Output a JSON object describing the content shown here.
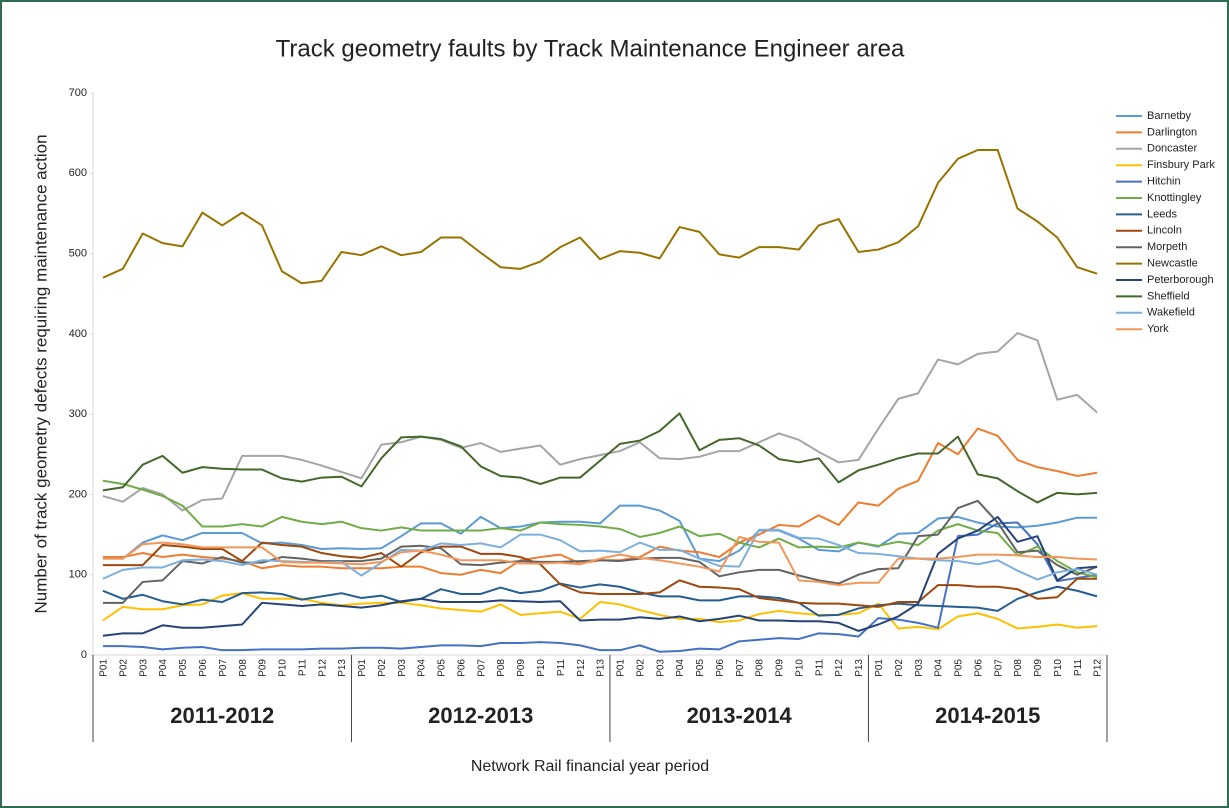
{
  "chart_data": {
    "type": "line",
    "title": "Track geometry faults by Track Maintenance Engineer area",
    "y_label": "Number of track geometry defects requiring maintenance action",
    "x_label": "Network Rail financial year period",
    "groups": [
      {
        "name": "2011-2012",
        "categories": [
          "P01",
          "P02",
          "P03",
          "P04",
          "P05",
          "P06",
          "P07",
          "P08",
          "P09",
          "P10",
          "P11",
          "P12",
          "P13"
        ]
      },
      {
        "name": "2012-2013",
        "categories": [
          "P01",
          "P02",
          "P03",
          "P04",
          "P05",
          "P06",
          "P07",
          "P08",
          "P09",
          "P10",
          "P11",
          "P12",
          "P13"
        ]
      },
      {
        "name": "2013-2014",
        "categories": [
          "P01",
          "P02",
          "P03",
          "P04",
          "P05",
          "P06",
          "P07",
          "P08",
          "P09",
          "P10",
          "P11",
          "P12",
          "P13"
        ]
      },
      {
        "name": "2014-2015",
        "categories": [
          "P01",
          "P02",
          "P03",
          "P04",
          "P05",
          "P06",
          "P07",
          "P08",
          "P09",
          "P10",
          "P11",
          "P12"
        ]
      }
    ],
    "ylim": [
      0,
      700
    ],
    "yticks": [
      0,
      100,
      200,
      300,
      400,
      500,
      600,
      700
    ],
    "grid": false,
    "legend": "right",
    "series": [
      {
        "name": "Barnetby",
        "color": "#5b9bd5",
        "values": [
          120,
          120,
          140,
          149,
          143,
          152,
          152,
          152,
          139,
          140,
          137,
          132,
          133,
          132,
          133,
          148,
          164,
          164,
          151,
          172,
          158,
          160,
          165,
          166,
          166,
          164,
          186,
          186,
          180,
          167,
          120,
          117,
          130,
          155,
          155,
          145,
          131,
          129,
          140,
          135,
          151,
          152,
          170,
          172,
          165,
          160,
          159,
          161,
          165,
          171,
          171
        ]
      },
      {
        "name": "Darlington",
        "color": "#ed7d31",
        "values": [
          122,
          122,
          127,
          122,
          125,
          122,
          120,
          117,
          108,
          112,
          110,
          110,
          108,
          108,
          108,
          110,
          110,
          102,
          100,
          106,
          102,
          118,
          122,
          125,
          114,
          118,
          118,
          122,
          135,
          130,
          128,
          122,
          140,
          150,
          162,
          160,
          174,
          162,
          190,
          186,
          207,
          217,
          264,
          250,
          282,
          273,
          243,
          234,
          229,
          223,
          227
        ]
      },
      {
        "name": "Doncaster",
        "color": "#a5a5a5",
        "values": [
          198,
          191,
          208,
          200,
          180,
          193,
          195,
          248,
          248,
          248,
          243,
          236,
          228,
          220,
          262,
          265,
          272,
          268,
          258,
          264,
          253,
          257,
          261,
          237,
          244,
          249,
          254,
          265,
          245,
          244,
          247,
          254,
          254,
          265,
          276,
          268,
          253,
          240,
          243,
          282,
          319,
          326,
          368,
          362,
          375,
          378,
          401,
          392,
          318,
          324,
          302
        ]
      },
      {
        "name": "Finsbury Park",
        "color": "#ffc000",
        "values": [
          43,
          60,
          57,
          57,
          62,
          63,
          74,
          77,
          70,
          70,
          70,
          65,
          62,
          64,
          65,
          65,
          62,
          58,
          56,
          54,
          63,
          50,
          52,
          54,
          45,
          66,
          63,
          56,
          50,
          45,
          45,
          41,
          43,
          51,
          55,
          52,
          50,
          50,
          52,
          64,
          33,
          35,
          32,
          48,
          52,
          45,
          33,
          35,
          38,
          34,
          36
        ]
      },
      {
        "name": "Hitchin",
        "color": "#4472c4",
        "values": [
          11,
          11,
          10,
          7,
          9,
          10,
          6,
          6,
          7,
          7,
          7,
          8,
          8,
          9,
          9,
          8,
          10,
          12,
          12,
          11,
          15,
          15,
          16,
          15,
          12,
          6,
          6,
          12,
          4,
          5,
          8,
          7,
          17,
          19,
          21,
          20,
          27,
          26,
          23,
          46,
          44,
          40,
          34,
          148,
          150,
          164,
          165,
          138,
          92,
          96,
          100
        ]
      },
      {
        "name": "Knottingley",
        "color": "#70ad47",
        "values": [
          217,
          213,
          206,
          198,
          186,
          160,
          160,
          163,
          160,
          172,
          166,
          163,
          166,
          158,
          155,
          159,
          155,
          155,
          155,
          155,
          158,
          155,
          165,
          163,
          162,
          160,
          157,
          147,
          152,
          160,
          148,
          151,
          140,
          134,
          145,
          134,
          135,
          134,
          140,
          136,
          141,
          137,
          155,
          163,
          155,
          152,
          124,
          135,
          117,
          103,
          97
        ]
      },
      {
        "name": "Leeds",
        "color": "#255e91",
        "values": [
          80,
          70,
          75,
          67,
          63,
          69,
          66,
          77,
          78,
          76,
          69,
          73,
          77,
          71,
          74,
          66,
          70,
          82,
          76,
          76,
          84,
          77,
          80,
          89,
          84,
          88,
          85,
          78,
          73,
          73,
          68,
          68,
          73,
          73,
          71,
          65,
          49,
          50,
          58,
          62,
          64,
          62,
          61,
          60,
          59,
          55,
          70,
          78,
          85,
          80,
          73
        ]
      },
      {
        "name": "Lincoln",
        "color": "#9e480e",
        "values": [
          112,
          112,
          112,
          137,
          135,
          132,
          132,
          117,
          140,
          137,
          135,
          127,
          123,
          121,
          127,
          110,
          128,
          135,
          135,
          126,
          126,
          122,
          113,
          88,
          78,
          76,
          76,
          76,
          78,
          93,
          85,
          84,
          82,
          71,
          68,
          65,
          64,
          64,
          62,
          60,
          66,
          66,
          87,
          87,
          85,
          85,
          82,
          70,
          72,
          95,
          95
        ]
      },
      {
        "name": "Morpeth",
        "color": "#636363",
        "values": [
          65,
          65,
          91,
          93,
          117,
          114,
          122,
          115,
          115,
          122,
          120,
          117,
          117,
          117,
          120,
          135,
          136,
          133,
          113,
          112,
          115,
          117,
          116,
          116,
          117,
          118,
          117,
          120,
          121,
          121,
          116,
          98,
          103,
          106,
          106,
          99,
          93,
          89,
          100,
          107,
          108,
          148,
          150,
          183,
          192,
          165,
          128,
          130,
          112,
          100,
          110
        ]
      },
      {
        "name": "Newcastle",
        "color": "#997300",
        "values": [
          470,
          481,
          525,
          513,
          509,
          551,
          535,
          551,
          535,
          478,
          463,
          466,
          502,
          498,
          509,
          498,
          502,
          520,
          520,
          501,
          483,
          481,
          490,
          508,
          520,
          493,
          503,
          501,
          494,
          533,
          527,
          499,
          495,
          508,
          508,
          505,
          535,
          543,
          502,
          505,
          514,
          534,
          588,
          618,
          629,
          629,
          556,
          540,
          520,
          483,
          475
        ]
      },
      {
        "name": "Peterborough",
        "color": "#264478",
        "values": [
          24,
          27,
          27,
          37,
          34,
          34,
          36,
          38,
          65,
          63,
          61,
          63,
          61,
          59,
          62,
          67,
          70,
          66,
          66,
          66,
          68,
          67,
          66,
          67,
          43,
          44,
          44,
          47,
          45,
          48,
          42,
          45,
          49,
          43,
          43,
          42,
          42,
          40,
          30,
          38,
          48,
          64,
          126,
          145,
          155,
          172,
          141,
          148,
          93,
          108,
          110
        ]
      },
      {
        "name": "Sheffield",
        "color": "#43682b",
        "values": [
          205,
          209,
          237,
          248,
          227,
          234,
          232,
          231,
          231,
          220,
          216,
          221,
          222,
          210,
          245,
          271,
          272,
          269,
          260,
          235,
          223,
          221,
          213,
          221,
          221,
          242,
          263,
          267,
          279,
          301,
          255,
          268,
          270,
          261,
          244,
          240,
          245,
          215,
          230,
          237,
          245,
          251,
          251,
          272,
          225,
          220,
          204,
          190,
          202,
          200,
          202
        ]
      },
      {
        "name": "Wakefield",
        "color": "#7cafdd",
        "values": [
          95,
          106,
          109,
          109,
          118,
          119,
          117,
          112,
          118,
          117,
          116,
          115,
          116,
          99,
          115,
          131,
          130,
          139,
          137,
          139,
          134,
          150,
          150,
          143,
          129,
          130,
          128,
          140,
          131,
          131,
          120,
          111,
          110,
          156,
          156,
          146,
          145,
          137,
          127,
          126,
          123,
          120,
          118,
          117,
          113,
          118,
          105,
          94,
          103,
          107,
          100
        ]
      },
      {
        "name": "York",
        "color": "#f1975a",
        "values": [
          120,
          120,
          138,
          140,
          138,
          134,
          134,
          134,
          134,
          116,
          115,
          115,
          114,
          113,
          116,
          128,
          130,
          125,
          118,
          118,
          118,
          114,
          114,
          115,
          113,
          120,
          125,
          121,
          118,
          114,
          110,
          104,
          147,
          141,
          140,
          93,
          91,
          87,
          90,
          90,
          120,
          120,
          120,
          122,
          125,
          125,
          124,
          122,
          122,
          120,
          119
        ]
      }
    ]
  }
}
